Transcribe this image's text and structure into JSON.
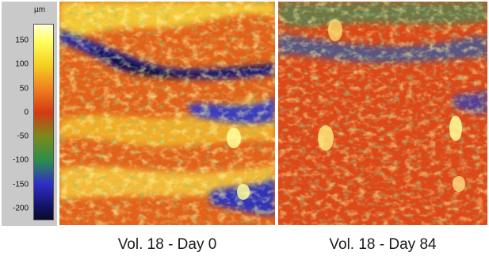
{
  "colorbar": {
    "unit": "µm",
    "ticks": [
      "150",
      "100",
      "50",
      "0",
      "-50",
      "-100",
      "-150",
      "-200"
    ],
    "tick_values": [
      150,
      100,
      50,
      0,
      -50,
      -100,
      -150,
      -200
    ],
    "range": [
      -225,
      185
    ],
    "gradient_stops": [
      {
        "value": 185,
        "color": "#ffffd8"
      },
      {
        "value": 150,
        "color": "#ffff60"
      },
      {
        "value": 100,
        "color": "#f5d020"
      },
      {
        "value": 50,
        "color": "#f08020"
      },
      {
        "value": 0,
        "color": "#d43a12"
      },
      {
        "value": -50,
        "color": "#7a8a1a"
      },
      {
        "value": -100,
        "color": "#2d8f4a"
      },
      {
        "value": -150,
        "color": "#2e2ec8"
      },
      {
        "value": -200,
        "color": "#121260"
      },
      {
        "value": -225,
        "color": "#0a0a2a"
      }
    ]
  },
  "panels": [
    {
      "caption": "Vol. 18 - Day 0"
    },
    {
      "caption": "Vol. 18 - Day 84"
    }
  ]
}
